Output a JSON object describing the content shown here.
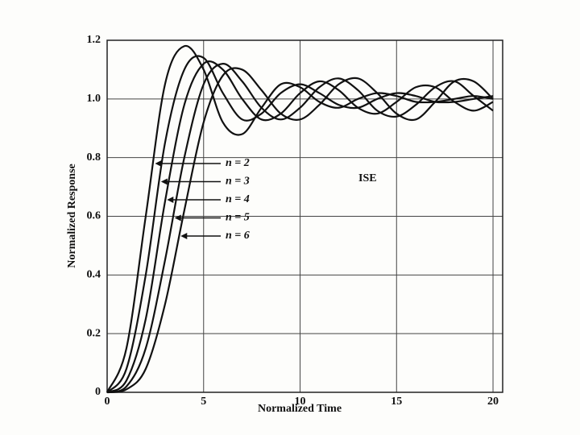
{
  "chart_data": {
    "type": "line",
    "x_label": "Normalized Time",
    "y_label": "Normalized Response",
    "annotation": "ISE",
    "x": [
      0,
      1,
      2,
      3,
      4,
      5,
      6,
      7,
      8,
      9,
      10,
      11,
      12,
      13,
      14,
      15,
      16,
      17,
      18,
      19,
      20
    ],
    "series": [
      {
        "name": "n = 2",
        "color": "#111111",
        "values": [
          0,
          0.15,
          0.6,
          1.05,
          1.18,
          1.1,
          0.92,
          0.88,
          0.97,
          1.05,
          1.04,
          0.99,
          0.97,
          1.0,
          1.02,
          1.01,
          0.99,
          0.99,
          1.0,
          1.01,
          1.0
        ]
      },
      {
        "name": "n = 3",
        "color": "#111111",
        "values": [
          0,
          0.08,
          0.4,
          0.85,
          1.1,
          1.14,
          1.02,
          0.93,
          0.95,
          1.02,
          1.05,
          1.02,
          0.98,
          0.97,
          1.0,
          1.02,
          1.01,
          0.99,
          0.99,
          1.0,
          1.01
        ]
      },
      {
        "name": "n = 4",
        "color": "#111111",
        "values": [
          0,
          0.04,
          0.25,
          0.65,
          0.98,
          1.12,
          1.1,
          1.0,
          0.93,
          0.95,
          1.02,
          1.06,
          1.03,
          0.97,
          0.95,
          0.99,
          1.04,
          1.04,
          0.99,
          0.96,
          0.99
        ]
      },
      {
        "name": "n = 5",
        "color": "#111111",
        "values": [
          0,
          0.02,
          0.15,
          0.45,
          0.8,
          1.05,
          1.12,
          1.06,
          0.97,
          0.93,
          0.97,
          1.04,
          1.07,
          1.03,
          0.96,
          0.94,
          0.98,
          1.04,
          1.06,
          1.01,
          0.96
        ]
      },
      {
        "name": "n = 6",
        "color": "#111111",
        "values": [
          0,
          0.01,
          0.08,
          0.3,
          0.62,
          0.92,
          1.08,
          1.1,
          1.03,
          0.95,
          0.93,
          0.98,
          1.05,
          1.07,
          1.02,
          0.95,
          0.93,
          0.99,
          1.06,
          1.06,
          1.0
        ]
      }
    ],
    "xlim": [
      0,
      20.5
    ],
    "xticks": [
      0,
      5,
      10,
      15,
      20
    ],
    "ylim": [
      0,
      1.2
    ],
    "yticks": [
      0,
      0.2,
      0.4,
      0.6,
      0.8,
      {
        "value": 1,
        "label": "1.0"
      },
      {
        "value": 1.2,
        "label": "1.2"
      }
    ],
    "grid": true
  }
}
